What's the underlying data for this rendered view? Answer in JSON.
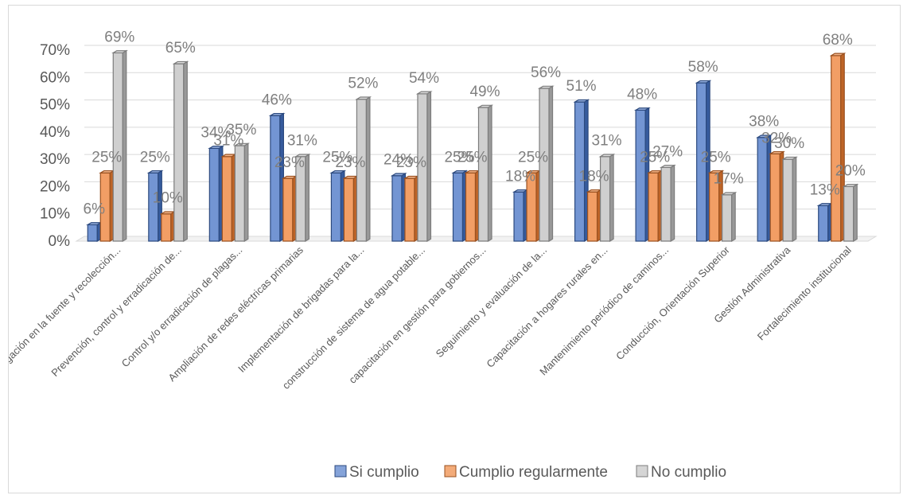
{
  "chart_data": {
    "type": "bar",
    "title": "",
    "xlabel": "",
    "ylabel": "",
    "ylim": [
      0,
      0.7
    ],
    "y_ticks": [
      "0%",
      "10%",
      "20%",
      "30%",
      "40%",
      "50%",
      "60%",
      "70%"
    ],
    "y_tick_values": [
      0,
      0.1,
      0.2,
      0.3,
      0.4,
      0.5,
      0.6,
      0.7
    ],
    "grid": true,
    "style": "3d-clustered-column",
    "legend_position": "bottom",
    "categories": [
      "Segregación en la fuente y recolección...",
      "Prevención, control y erradicación de...",
      "Control y/o erradicación de plagas...",
      "Ampliación de redes eléctricas primarias",
      "Implementación de brigadas para la...",
      "construcción de sistema de agua potable...",
      "capacitación en gestión para gobiernos...",
      "Seguimiento y evaluación de la...",
      "Capacitación a hogares rurales en...",
      "Mantenimiento periódico de caminos...",
      "Conducción, Orientación Superior",
      "Gestión Administrativa",
      "Fortalecimiento institucional"
    ],
    "series": [
      {
        "name": "Si cumplio",
        "color": "#4472c4",
        "values": [
          0.06,
          0.25,
          0.34,
          0.46,
          0.25,
          0.24,
          0.25,
          0.18,
          0.51,
          0.48,
          0.58,
          0.38,
          0.13
        ],
        "labels": [
          "6%",
          "25%",
          "34%",
          "46%",
          "25%",
          "24%",
          "25%",
          "18%",
          "51%",
          "48%",
          "58%",
          "38%",
          "13%"
        ]
      },
      {
        "name": "Cumplio regularmente",
        "color": "#ed7d31",
        "values": [
          0.25,
          0.1,
          0.31,
          0.23,
          0.23,
          0.23,
          0.25,
          0.25,
          0.18,
          0.25,
          0.25,
          0.32,
          0.68
        ],
        "labels": [
          "25%",
          "10%",
          "31%",
          "23%",
          "23%",
          "23%",
          "25%",
          "25%",
          "18%",
          "25%",
          "25%",
          "32%",
          "68%"
        ]
      },
      {
        "name": "No cumplio",
        "color": "#bfbfbf",
        "values": [
          0.69,
          0.65,
          0.35,
          0.31,
          0.52,
          0.54,
          0.49,
          0.56,
          0.31,
          0.27,
          0.17,
          0.3,
          0.2
        ],
        "labels": [
          "69%",
          "65%",
          "35%",
          "31%",
          "52%",
          "54%",
          "49%",
          "56%",
          "31%",
          "27%",
          "17%",
          "30%",
          "20%"
        ]
      }
    ]
  }
}
